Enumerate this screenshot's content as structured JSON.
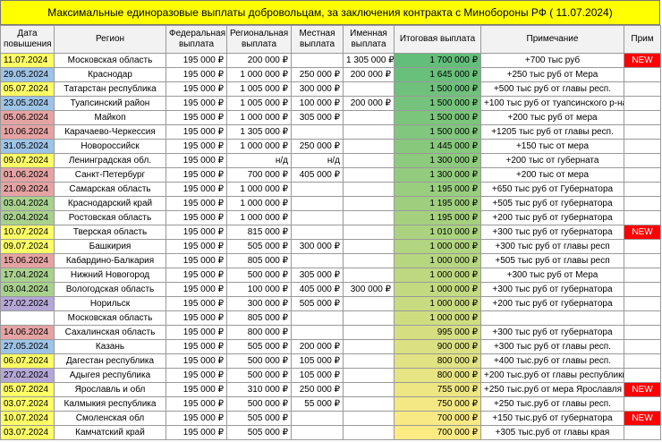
{
  "header": {
    "title": "Максимальные единоразовые выплаты добровольцам, за заключения контракта с Минобороны РФ ( 11.07.2024)"
  },
  "table": {
    "columns": [
      "Дата повышения",
      "Регион",
      "Федеральная выплата",
      "Региональная выплата",
      "Местная выплата",
      "Именная выплата",
      "Итоговая выплата",
      "Примечание",
      "Прим"
    ],
    "rows": [
      [
        "11.07.2024",
        "Московская область",
        "195 000 ₽",
        "200 000 ₽",
        null,
        "1 305 000 ₽",
        "1 700 000 ₽",
        "+700 тыс руб",
        "NEW"
      ],
      [
        "29.05.2024",
        "Краснодар",
        "195 000 ₽",
        "1 000 000 ₽",
        "250 000 ₽",
        "200 000 ₽",
        "1 645 000 ₽",
        "+250 тыс руб от Мера",
        null
      ],
      [
        "05.07.2024",
        "Татарстан республика",
        "195 000 ₽",
        "1 005 000 ₽",
        "300 000 ₽",
        null,
        "1 500 000 ₽",
        "+500 тыс руб от главы респ.",
        null
      ],
      [
        "23.05.2024",
        "Туапсинский район",
        "195 000 ₽",
        "1 005 000 ₽",
        "100 000 ₽",
        "200 000 ₽",
        "1 500 000 ₽",
        "+100 тыс руб от туапсинского р-на",
        null
      ],
      [
        "05.06.2024",
        "Майкоп",
        "195 000 ₽",
        "1 000 000 ₽",
        "305 000 ₽",
        null,
        "1 500 000 ₽",
        "+200 тыс руб от мера",
        null
      ],
      [
        "10.06.2024",
        "Карачаево-Черкессия",
        "195 000 ₽",
        "1 305 000 ₽",
        null,
        null,
        "1 500 000 ₽",
        "+1205 тыс руб от главы респ.",
        null
      ],
      [
        "31.05.2024",
        "Новороссийск",
        "195 000 ₽",
        "1 000 000 ₽",
        "250 000 ₽",
        null,
        "1 445 000 ₽",
        "+150 тыс от мера",
        null
      ],
      [
        "09.07.2024",
        "Ленинградская обл.",
        "195 000 ₽",
        "н/д",
        "н/д",
        null,
        "1 300 000 ₽",
        "+200 тыс от губерната",
        null
      ],
      [
        "01.06.2024",
        "Санкт-Петербург",
        "195 000 ₽",
        "700 000 ₽",
        "405 000 ₽",
        null,
        "1 300 000 ₽",
        "+200 тыс от мера",
        null
      ],
      [
        "21.09.2024",
        "Самарская область",
        "195 000 ₽",
        "1 000 000 ₽",
        null,
        null,
        "1 195 000 ₽",
        "+650 тыс руб от Губернатора",
        null
      ],
      [
        "03.04.2024",
        "Краснодарский край",
        "195 000 ₽",
        "1 000 000 ₽",
        null,
        null,
        "1 195 000 ₽",
        "+505 тыс руб от губернатора",
        null
      ],
      [
        "02.04.2024",
        "Ростовская область",
        "195 000 ₽",
        "1 000 000 ₽",
        null,
        null,
        "1 195 000 ₽",
        "+200 тыс руб от губернатора",
        null
      ],
      [
        "10.07.2024",
        "Тверская область",
        "195 000 ₽",
        "815 000 ₽",
        null,
        null,
        "1 010 000 ₽",
        "+300 тыс руб от губернатора",
        "NEW"
      ],
      [
        "09.07.2024",
        "Башкирия",
        "195 000 ₽",
        "505 000 ₽",
        "300 000 ₽",
        null,
        "1 000 000 ₽",
        "+300 тыс руб от главы респ",
        null
      ],
      [
        "15.06.2024",
        "Кабардино-Балкария",
        "195 000 ₽",
        "805 000 ₽",
        null,
        null,
        "1 000 000 ₽",
        "+505 тыс руб от главы респ",
        null
      ],
      [
        "17.04.2024",
        "Нижний Новогород",
        "195 000 ₽",
        "500 000 ₽",
        "305 000 ₽",
        null,
        "1 000 000 ₽",
        "+300 тыс руб от Мера",
        null
      ],
      [
        "03.04.2024",
        "Вологодская область",
        "195 000 ₽",
        "100 000 ₽",
        "405 000 ₽",
        "300 000 ₽",
        "1 000 000 ₽",
        "+300 тыс руб от губернатора",
        null
      ],
      [
        "27.02.2024",
        "Норильск",
        "195 000 ₽",
        "300 000 ₽",
        "505 000 ₽",
        null,
        "1 000 000 ₽",
        "+200 тыс руб от губернатора",
        null
      ],
      [
        null,
        "Московская область",
        "195 000 ₽",
        "805 000 ₽",
        null,
        null,
        "1 000 000 ₽",
        null,
        null
      ],
      [
        "14.06.2024",
        "Сахалинская область",
        "195 000 ₽",
        "800 000 ₽",
        null,
        null,
        "995 000 ₽",
        "+300 тыс руб от губернатора",
        null
      ],
      [
        "27.05.2024",
        "Казань",
        "195 000 ₽",
        "505 000 ₽",
        "200 000 ₽",
        null,
        "900 000 ₽",
        "+300 тыс руб от главы респ.",
        null
      ],
      [
        "06.07.2024",
        "Дагестан республика",
        "195 000 ₽",
        "500 000 ₽",
        "105 000 ₽",
        null,
        "800 000 ₽",
        "+400 тыс.руб от главы респ.",
        null
      ],
      [
        "27.02.2024",
        "Адыгея республика",
        "195 000 ₽",
        "500 000 ₽",
        "105 000 ₽",
        null,
        "800 000 ₽",
        "+200 тыс.руб от главы республики",
        null
      ],
      [
        "05.07.2024",
        "Ярославль и обл",
        "195 000 ₽",
        "310 000 ₽",
        "250 000 ₽",
        null,
        "755 000 ₽",
        "+250 тыс.руб от мера Ярославля",
        "NEW"
      ],
      [
        "03.07.2024",
        "Калмыкия республика",
        "195 000 ₽",
        "500 000 ₽",
        "55 000 ₽",
        null,
        "750 000 ₽",
        "+250 тыс.руб от главы респ.",
        null
      ],
      [
        "10.07.2024",
        "Смоленская обл",
        "195 000 ₽",
        "505 000 ₽",
        null,
        null,
        "700 000 ₽",
        "+150 тыс.руб от губернатора",
        "NEW"
      ],
      [
        "03.07.2024",
        "Камчатский край",
        "195 000 ₽",
        "505 000 ₽",
        null,
        null,
        "700 000 ₽",
        "+305 тыс.руб от главы края",
        null
      ]
    ]
  }
}
